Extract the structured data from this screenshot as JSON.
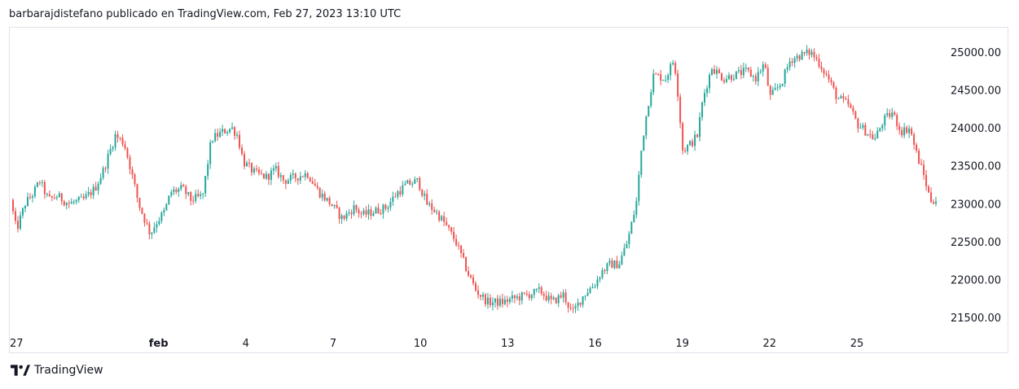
{
  "header": {
    "caption": "barbarajdistefano publicado en TradingView.com, Feb 27, 2023 13:10 UTC"
  },
  "footer": {
    "brand": "TradingView"
  },
  "colors": {
    "up": "#26a69a",
    "down": "#ef5350",
    "wick": "#5d606b",
    "grid": "#e0e3eb",
    "text": "#131722"
  },
  "chart_data": {
    "type": "candlestick",
    "title": "",
    "xlabel": "",
    "ylabel": "",
    "y_axis_side": "right",
    "ylim": [
      21350,
      25300
    ],
    "yticks": [
      21500,
      22000,
      22500,
      23000,
      23500,
      24000,
      24500,
      25000
    ],
    "ytick_labels": [
      "21500.00",
      "22000.00",
      "22500.00",
      "23000.00",
      "23500.00",
      "24000.00",
      "24500.00",
      "25000.00"
    ],
    "xlim": [
      0,
      31.8
    ],
    "xticks": [
      0,
      5,
      8,
      11,
      14,
      17,
      20,
      23,
      26,
      29
    ],
    "xtick_labels": [
      "27",
      "feb",
      "4",
      "7",
      "10",
      "13",
      "16",
      "19",
      "22",
      "25"
    ],
    "price_path": [
      [
        0,
        23050
      ],
      [
        0.2,
        22650
      ],
      [
        0.5,
        23000
      ],
      [
        0.8,
        23150
      ],
      [
        1.0,
        23300
      ],
      [
        1.3,
        23050
      ],
      [
        1.6,
        23100
      ],
      [
        2.0,
        23000
      ],
      [
        2.5,
        23050
      ],
      [
        2.9,
        23200
      ],
      [
        3.2,
        23450
      ],
      [
        3.6,
        23900
      ],
      [
        3.9,
        23800
      ],
      [
        4.1,
        23500
      ],
      [
        4.4,
        23000
      ],
      [
        4.8,
        22600
      ],
      [
        5.0,
        22750
      ],
      [
        5.3,
        22900
      ],
      [
        5.5,
        23150
      ],
      [
        5.9,
        23200
      ],
      [
        6.2,
        23050
      ],
      [
        6.6,
        23100
      ],
      [
        6.9,
        23850
      ],
      [
        7.3,
        23950
      ],
      [
        7.6,
        24000
      ],
      [
        7.8,
        23900
      ],
      [
        8.0,
        23550
      ],
      [
        8.4,
        23400
      ],
      [
        8.8,
        23350
      ],
      [
        9.1,
        23450
      ],
      [
        9.4,
        23300
      ],
      [
        9.8,
        23350
      ],
      [
        10.2,
        23400
      ],
      [
        10.6,
        23150
      ],
      [
        11.0,
        23000
      ],
      [
        11.4,
        22800
      ],
      [
        11.8,
        22950
      ],
      [
        12.1,
        22850
      ],
      [
        12.5,
        22900
      ],
      [
        12.9,
        22950
      ],
      [
        13.3,
        23150
      ],
      [
        13.6,
        23250
      ],
      [
        14.0,
        23300
      ],
      [
        14.3,
        23000
      ],
      [
        14.6,
        22900
      ],
      [
        14.9,
        22750
      ],
      [
        15.3,
        22500
      ],
      [
        15.7,
        22100
      ],
      [
        16.0,
        21850
      ],
      [
        16.4,
        21700
      ],
      [
        16.9,
        21700
      ],
      [
        17.3,
        21750
      ],
      [
        17.8,
        21800
      ],
      [
        18.2,
        21850
      ],
      [
        18.6,
        21700
      ],
      [
        19.0,
        21800
      ],
      [
        19.3,
        21550
      ],
      [
        19.7,
        21800
      ],
      [
        20.1,
        21950
      ],
      [
        20.3,
        22100
      ],
      [
        20.6,
        22200
      ],
      [
        20.9,
        22200
      ],
      [
        21.2,
        22500
      ],
      [
        21.5,
        23000
      ],
      [
        21.7,
        23800
      ],
      [
        21.9,
        24300
      ],
      [
        22.1,
        24700
      ],
      [
        22.5,
        24650
      ],
      [
        22.8,
        24900
      ],
      [
        22.9,
        24600
      ],
      [
        23.1,
        23700
      ],
      [
        23.4,
        23800
      ],
      [
        23.6,
        23900
      ],
      [
        23.8,
        24400
      ],
      [
        24.1,
        24800
      ],
      [
        24.5,
        24650
      ],
      [
        24.9,
        24700
      ],
      [
        25.3,
        24750
      ],
      [
        25.6,
        24650
      ],
      [
        25.9,
        24850
      ],
      [
        26.1,
        24400
      ],
      [
        26.5,
        24600
      ],
      [
        26.8,
        24900
      ],
      [
        27.1,
        24950
      ],
      [
        27.5,
        25000
      ],
      [
        27.8,
        24850
      ],
      [
        28.1,
        24650
      ],
      [
        28.4,
        24400
      ],
      [
        28.8,
        24300
      ],
      [
        29.1,
        24050
      ],
      [
        29.4,
        23950
      ],
      [
        29.7,
        23850
      ],
      [
        30.0,
        24100
      ],
      [
        30.3,
        24200
      ],
      [
        30.6,
        23950
      ],
      [
        30.9,
        24000
      ],
      [
        31.1,
        23700
      ],
      [
        31.4,
        23350
      ],
      [
        31.6,
        23050
      ],
      [
        31.8,
        23050
      ]
    ],
    "price_path_2": [
      [
        0,
        23050
      ],
      [
        0.4,
        22700
      ],
      [
        0.9,
        23000
      ],
      [
        1.5,
        23100
      ],
      [
        2.1,
        23000
      ],
      [
        2.7,
        23050
      ],
      [
        3.1,
        23200
      ],
      [
        3.4,
        23550
      ],
      [
        3.6,
        23950
      ],
      [
        4.0,
        23750
      ],
      [
        4.3,
        23350
      ],
      [
        4.7,
        22950
      ],
      [
        5.0,
        22700
      ],
      [
        5.4,
        22950
      ],
      [
        5.8,
        23200
      ],
      [
        6.2,
        23050
      ],
      [
        6.6,
        23100
      ],
      [
        6.9,
        23800
      ],
      [
        7.2,
        23950
      ],
      [
        7.6,
        24050
      ],
      [
        7.9,
        23700
      ],
      [
        8.3,
        23450
      ],
      [
        8.7,
        23350
      ],
      [
        9.2,
        23450
      ],
      [
        9.6,
        23300
      ],
      [
        10.1,
        23400
      ],
      [
        10.5,
        23150
      ],
      [
        10.9,
        22950
      ],
      [
        11.4,
        22800
      ],
      [
        11.9,
        22950
      ],
      [
        12.5,
        22900
      ],
      [
        13.0,
        23050
      ],
      [
        13.4,
        23250
      ],
      [
        13.8,
        23350
      ],
      [
        14.2,
        23100
      ],
      [
        14.7,
        22900
      ],
      [
        15.1,
        22600
      ],
      [
        15.4,
        22400
      ],
      [
        15.6,
        22150
      ],
      [
        16.0,
        21900
      ],
      [
        16.5,
        21700
      ],
      [
        17.0,
        21700
      ],
      [
        17.7,
        21800
      ],
      [
        18.3,
        21850
      ],
      [
        18.8,
        21700
      ],
      [
        19.2,
        21650
      ],
      [
        19.5,
        21550
      ],
      [
        19.9,
        21850
      ],
      [
        20.3,
        22100
      ],
      [
        20.8,
        22200
      ],
      [
        21.3,
        22600
      ],
      [
        21.6,
        23300
      ],
      [
        21.8,
        24100
      ],
      [
        22.0,
        24600
      ],
      [
        22.4,
        24650
      ],
      [
        22.7,
        24850
      ],
      [
        23.0,
        23900
      ],
      [
        23.3,
        23750
      ],
      [
        23.7,
        24100
      ],
      [
        24.0,
        24700
      ],
      [
        24.4,
        24700
      ],
      [
        24.9,
        24750
      ],
      [
        25.4,
        24700
      ],
      [
        25.8,
        24800
      ],
      [
        26.2,
        24450
      ],
      [
        26.7,
        24900
      ],
      [
        27.2,
        24950
      ],
      [
        27.6,
        25050
      ],
      [
        28.0,
        24700
      ],
      [
        28.4,
        24400
      ],
      [
        28.9,
        24150
      ],
      [
        29.3,
        24000
      ],
      [
        29.8,
        23900
      ],
      [
        30.2,
        24200
      ],
      [
        30.7,
        23900
      ],
      [
        31.1,
        23750
      ],
      [
        31.4,
        23300
      ],
      [
        31.6,
        23050
      ],
      [
        31.8,
        23050
      ]
    ]
  }
}
